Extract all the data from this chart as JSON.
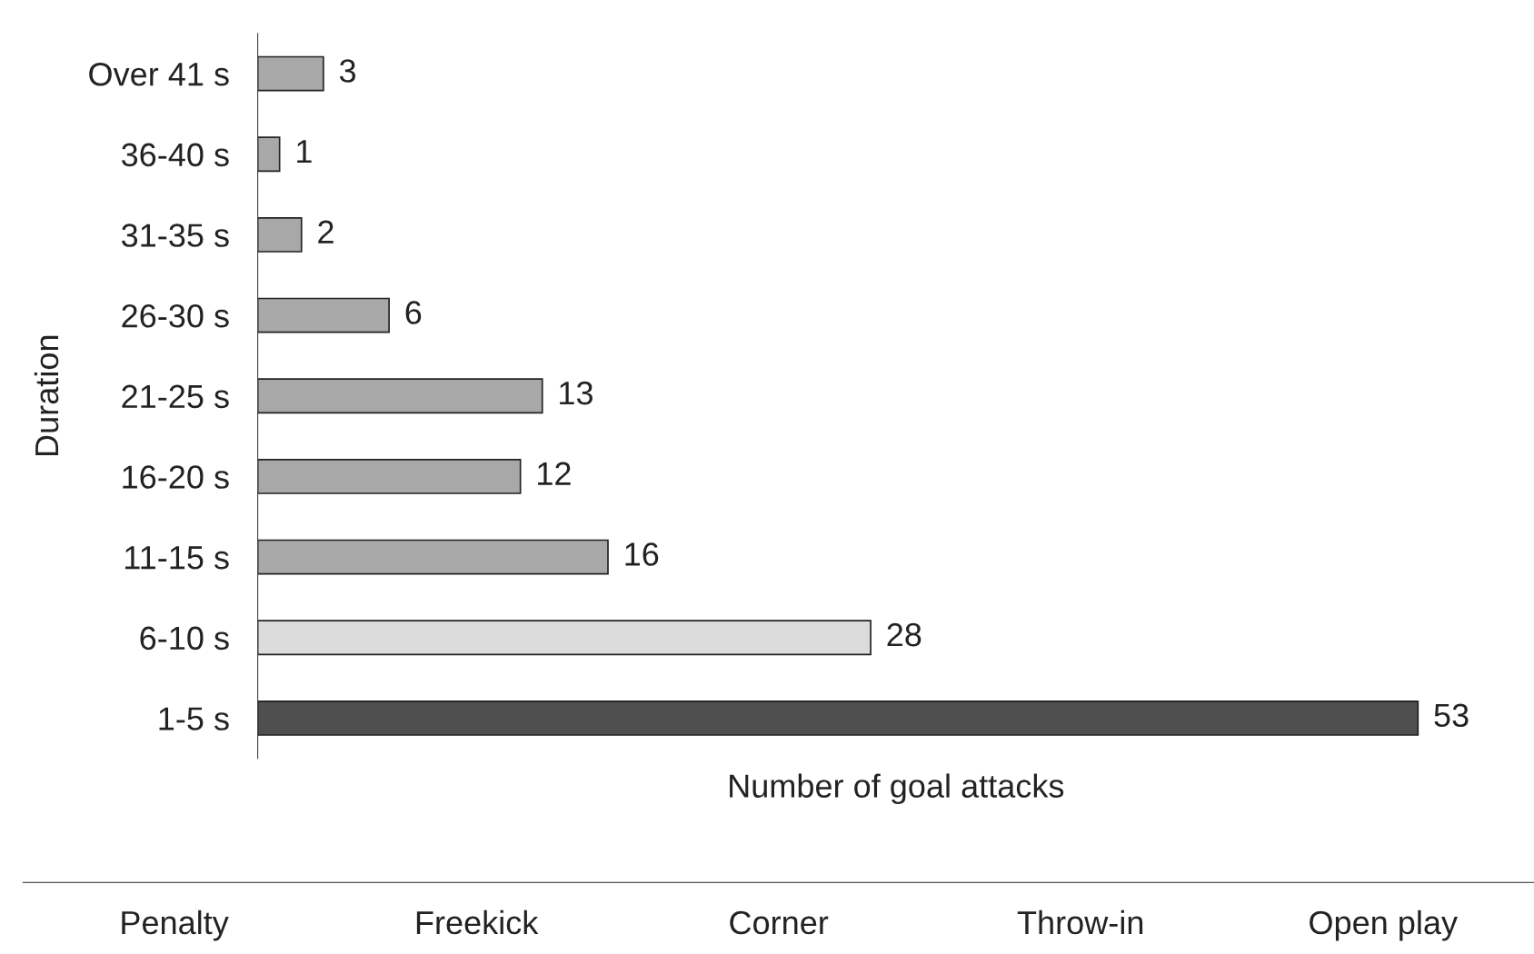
{
  "chart_data": [
    {
      "type": "bar",
      "orientation": "horizontal",
      "categories": [
        "Over 41 s",
        "36-40 s",
        "31-35 s",
        "26-30 s",
        "21-25 s",
        "16-20 s",
        "11-15 s",
        "6-10 s",
        "1-5 s"
      ],
      "values": [
        3,
        1,
        2,
        6,
        13,
        12,
        16,
        28,
        53
      ],
      "colors": [
        "#a8a8a8",
        "#a8a8a8",
        "#a8a8a8",
        "#a8a8a8",
        "#a8a8a8",
        "#a8a8a8",
        "#a8a8a8",
        "#dcdcdc",
        "#4f4f4f"
      ],
      "data_labels": true,
      "tick_labels": "y",
      "xlabel": "Number of goal attacks",
      "ylabel": "Duration"
    },
    {
      "type": "other",
      "categories": [
        "Penalty",
        "Freekick",
        "Corner",
        "Throw-in",
        "Open play"
      ]
    }
  ]
}
